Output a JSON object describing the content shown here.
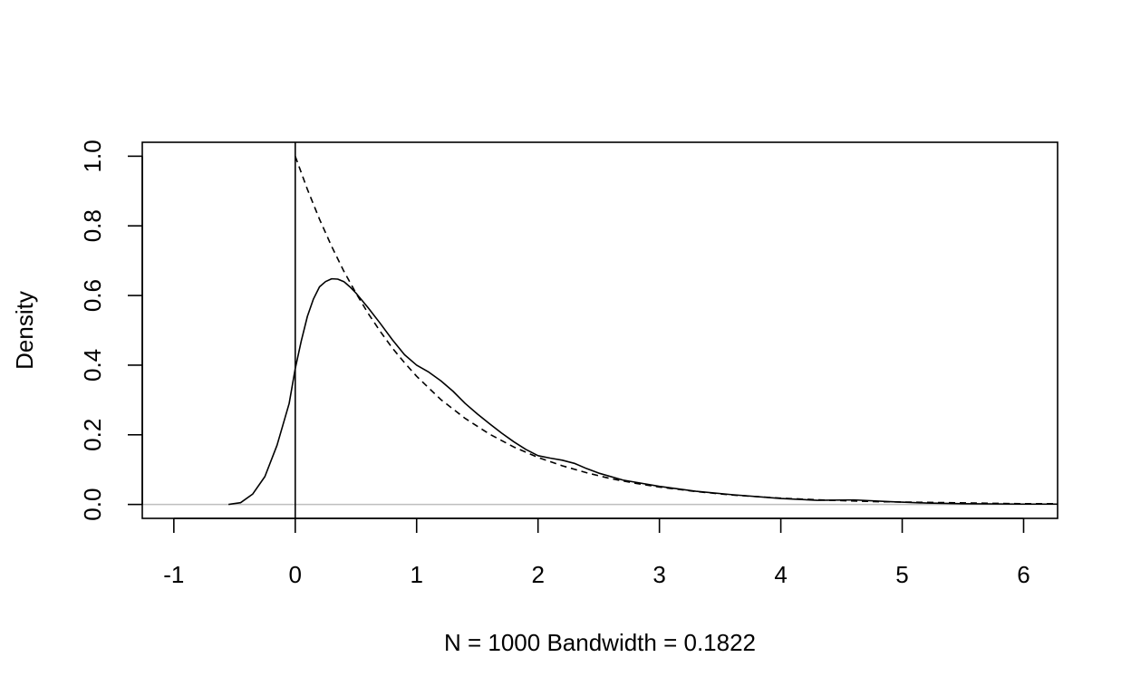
{
  "chart_data": {
    "type": "line",
    "title": "",
    "xlabel": "N = 1000   Bandwidth = 0.1822",
    "ylabel": "Density",
    "xlim": [
      -1.26,
      6.28
    ],
    "ylim": [
      -0.04,
      1.04
    ],
    "x_ticks": [
      -1,
      0,
      1,
      2,
      3,
      4,
      5,
      6
    ],
    "x_tick_labels": [
      "-1",
      "0",
      "1",
      "2",
      "3",
      "4",
      "5",
      "6"
    ],
    "y_ticks": [
      0.0,
      0.2,
      0.4,
      0.6,
      0.8,
      1.0
    ],
    "y_tick_labels": [
      "0.0",
      "0.2",
      "0.4",
      "0.6",
      "0.8",
      "1.0"
    ],
    "grid": false,
    "legend": "none",
    "reference_lines": {
      "horizontal_y": 0,
      "horizontal_color": "#bebebe",
      "vertical_x": 0,
      "vertical_color": "#000000"
    },
    "series": [
      {
        "style": "solid",
        "color": "#000000",
        "x": [
          -0.55,
          -0.45,
          -0.35,
          -0.25,
          -0.15,
          -0.05,
          0.0,
          0.05,
          0.1,
          0.15,
          0.2,
          0.25,
          0.3,
          0.35,
          0.4,
          0.45,
          0.5,
          0.6,
          0.7,
          0.8,
          0.9,
          1.0,
          1.1,
          1.2,
          1.3,
          1.4,
          1.5,
          1.6,
          1.7,
          1.8,
          1.9,
          2.0,
          2.1,
          2.2,
          2.3,
          2.4,
          2.5,
          2.7,
          3.0,
          3.3,
          3.6,
          4.0,
          4.3,
          4.6,
          4.9,
          5.2,
          5.5,
          6.0,
          6.28
        ],
        "y": [
          0.0,
          0.005,
          0.03,
          0.08,
          0.17,
          0.29,
          0.39,
          0.47,
          0.54,
          0.59,
          0.625,
          0.64,
          0.648,
          0.647,
          0.64,
          0.625,
          0.607,
          0.565,
          0.52,
          0.473,
          0.43,
          0.4,
          0.38,
          0.355,
          0.325,
          0.29,
          0.26,
          0.232,
          0.205,
          0.18,
          0.158,
          0.14,
          0.133,
          0.127,
          0.118,
          0.103,
          0.09,
          0.07,
          0.052,
          0.038,
          0.028,
          0.017,
          0.012,
          0.013,
          0.008,
          0.004,
          0.002,
          0.001,
          0.001
        ]
      },
      {
        "style": "dashed",
        "color": "#000000",
        "x": [
          0.0,
          0.1,
          0.2,
          0.3,
          0.4,
          0.5,
          0.6,
          0.7,
          0.8,
          0.9,
          1.0,
          1.2,
          1.4,
          1.6,
          1.8,
          2.0,
          2.2,
          2.4,
          2.6,
          2.8,
          3.0,
          3.3,
          3.6,
          4.0,
          4.4,
          4.8,
          5.2,
          5.6,
          6.0,
          6.28
        ],
        "y": [
          1.0,
          0.905,
          0.819,
          0.741,
          0.67,
          0.607,
          0.549,
          0.497,
          0.449,
          0.407,
          0.368,
          0.301,
          0.247,
          0.202,
          0.165,
          0.135,
          0.111,
          0.091,
          0.074,
          0.061,
          0.05,
          0.037,
          0.027,
          0.018,
          0.012,
          0.008,
          0.006,
          0.004,
          0.002,
          0.002
        ]
      }
    ]
  }
}
